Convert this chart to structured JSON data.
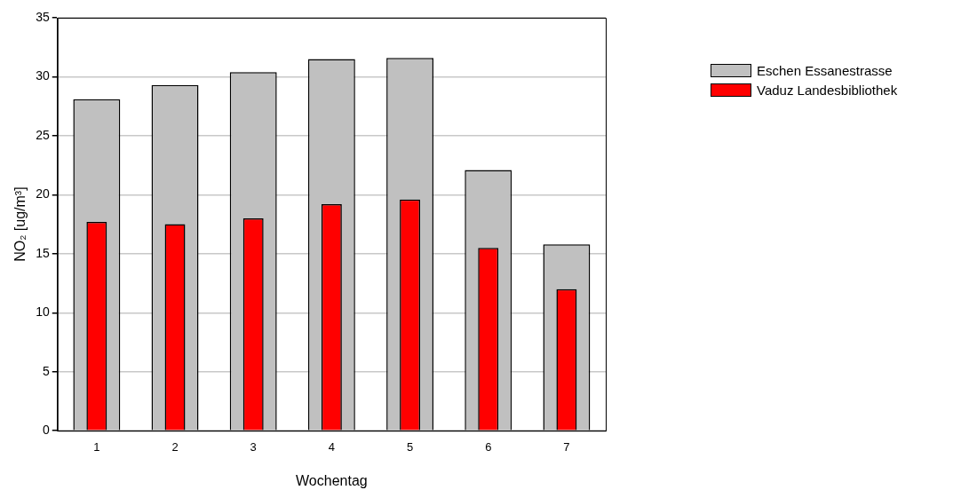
{
  "chart_data": {
    "type": "bar",
    "xlabel": "Wochentag",
    "ylabel": "NO₂ [ug/m³]",
    "categories": [
      "1",
      "2",
      "3",
      "4",
      "5",
      "6",
      "7"
    ],
    "series": [
      {
        "name": "Eschen Essanestrasse",
        "color": "#c0c0c0",
        "values": [
          28.1,
          29.3,
          30.4,
          31.5,
          31.6,
          22.1,
          15.8
        ]
      },
      {
        "name": "Vaduz Landesbibliothek",
        "color": "#ff0000",
        "values": [
          17.7,
          17.5,
          18.0,
          19.2,
          19.6,
          15.5,
          12.0
        ]
      }
    ],
    "ylim": [
      0,
      35
    ],
    "yticks": [
      0,
      5,
      10,
      15,
      20,
      25,
      30,
      35
    ],
    "grid": "y",
    "legend": "top right"
  }
}
